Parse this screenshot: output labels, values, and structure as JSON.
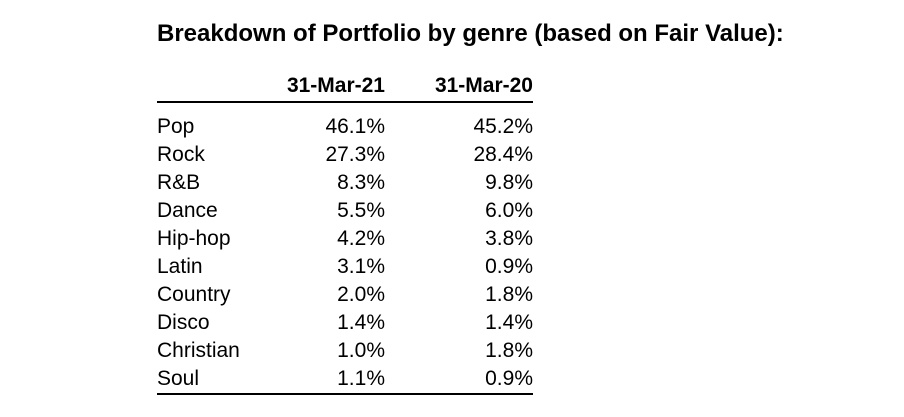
{
  "title": "Breakdown of Portfolio by genre (based on Fair Value):",
  "table": {
    "column_headers": [
      "31-Mar-21",
      "31-Mar-20"
    ],
    "rows": [
      {
        "genre": "Pop",
        "v2021": "46.1%",
        "v2020": "45.2%"
      },
      {
        "genre": "Rock",
        "v2021": "27.3%",
        "v2020": "28.4%"
      },
      {
        "genre": "R&B",
        "v2021": "8.3%",
        "v2020": "9.8%"
      },
      {
        "genre": "Dance",
        "v2021": "5.5%",
        "v2020": "6.0%"
      },
      {
        "genre": "Hip-hop",
        "v2021": "4.2%",
        "v2020": "3.8%"
      },
      {
        "genre": "Latin",
        "v2021": "3.1%",
        "v2020": "0.9%"
      },
      {
        "genre": "Country",
        "v2021": "2.0%",
        "v2020": "1.8%"
      },
      {
        "genre": "Disco",
        "v2021": "1.4%",
        "v2020": "1.4%"
      },
      {
        "genre": "Christian",
        "v2021": "1.0%",
        "v2020": "1.8%"
      },
      {
        "genre": "Soul",
        "v2021": "1.1%",
        "v2020": "0.9%"
      }
    ]
  },
  "colors": {
    "text": "#000000",
    "background": "#ffffff",
    "rule": "#000000"
  },
  "chart_data": {
    "type": "table",
    "title": "Breakdown of Portfolio by genre (based on Fair Value):",
    "categories": [
      "Pop",
      "Rock",
      "R&B",
      "Dance",
      "Hip-hop",
      "Latin",
      "Country",
      "Disco",
      "Christian",
      "Soul"
    ],
    "series": [
      {
        "name": "31-Mar-21",
        "values": [
          46.1,
          27.3,
          8.3,
          5.5,
          4.2,
          3.1,
          2.0,
          1.4,
          1.0,
          1.1
        ]
      },
      {
        "name": "31-Mar-20",
        "values": [
          45.2,
          28.4,
          9.8,
          6.0,
          3.8,
          0.9,
          1.8,
          1.4,
          1.8,
          0.9
        ]
      }
    ],
    "unit": "%"
  }
}
